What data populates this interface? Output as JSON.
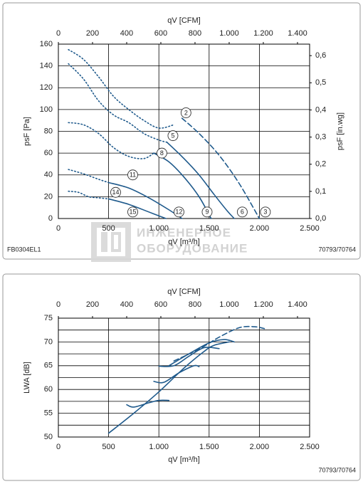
{
  "chart_data": [
    {
      "type": "line",
      "xlabel": "qV [m³/h]",
      "x2label": "qV [CFM]",
      "ylabel": "psF [Pa]",
      "y2label": "psF [in.wg]",
      "code_left": "FB0304EL1",
      "code_right": "70793/70764",
      "watermark": {
        "line1": "ИНЖЕНЕРНОЕ",
        "line2": "ОБОРУДОВАНИЕ"
      },
      "xlim": [
        0,
        2500
      ],
      "xticks": [
        0,
        500,
        {
          "value": 1000,
          "label": "1.000"
        },
        {
          "value": 1500,
          "label": "1.500"
        },
        {
          "value": 2000,
          "label": "2.000"
        },
        {
          "value": 2500,
          "label": "2.500"
        }
      ],
      "x2lim": [
        0,
        1471
      ],
      "x2ticks": [
        0,
        200,
        400,
        600,
        800,
        {
          "value": 1000,
          "label": "1.000"
        },
        {
          "value": 1200,
          "label": "1.200"
        },
        {
          "value": 1400,
          "label": "1.400"
        }
      ],
      "ylim": [
        0,
        160
      ],
      "yticks": [
        0,
        20,
        40,
        60,
        80,
        100,
        120,
        140,
        160
      ],
      "y2lim": [
        0,
        0.6424
      ],
      "y2ticks": [
        {
          "value": 0,
          "label": "0,0"
        },
        {
          "value": 0.1,
          "label": "0,1"
        },
        {
          "value": 0.2,
          "label": "0,2"
        },
        {
          "value": 0.3,
          "label": "0,3"
        },
        {
          "value": 0.4,
          "label": "0,4"
        },
        {
          "value": 0.5,
          "label": "0,5"
        },
        {
          "value": 0.6,
          "label": "0,6"
        }
      ],
      "grid": true,
      "color": "#1f5a8c",
      "series": [
        {
          "style": "dotted",
          "x": [
            100,
            250,
            400,
            550,
            700,
            850,
            1000,
            1150
          ],
          "values": [
            155,
            146,
            130,
            112,
            100,
            90,
            83,
            86
          ]
        },
        {
          "style": "dashed",
          "x": [
            1230,
            1400,
            1600,
            1800,
            2000
          ],
          "values": [
            92,
            78,
            58,
            32,
            0
          ]
        },
        {
          "style": "dotted",
          "x": [
            100,
            250,
            400,
            550,
            700,
            850,
            1000,
            1080
          ],
          "values": [
            142,
            128,
            108,
            95,
            88,
            78,
            72,
            70
          ]
        },
        {
          "style": "solid",
          "x": [
            1080,
            1250,
            1400,
            1550,
            1680,
            1750
          ],
          "values": [
            70,
            55,
            40,
            22,
            7,
            0
          ]
        },
        {
          "style": "dotted",
          "x": [
            100,
            250,
            400,
            550,
            700,
            850,
            950
          ],
          "values": [
            88,
            86,
            78,
            65,
            57,
            55,
            60
          ]
        },
        {
          "style": "solid",
          "x": [
            950,
            1100,
            1250,
            1400,
            1520
          ],
          "values": [
            60,
            52,
            38,
            20,
            0
          ]
        },
        {
          "style": "dotted",
          "x": [
            100,
            250,
            400,
            500
          ],
          "values": [
            45,
            41,
            36,
            33
          ]
        },
        {
          "style": "solid",
          "x": [
            500,
            700,
            900,
            1100,
            1230
          ],
          "values": [
            33,
            28,
            19,
            8,
            0
          ]
        },
        {
          "style": "dotted",
          "x": [
            100,
            200,
            300,
            400,
            500
          ],
          "values": [
            25,
            24,
            20,
            19,
            18
          ]
        },
        {
          "style": "solid",
          "x": [
            500,
            700,
            900,
            1070
          ],
          "values": [
            18,
            13,
            6,
            0
          ]
        }
      ],
      "annotations": [
        {
          "text": "2",
          "x": 1270,
          "y": 97
        },
        {
          "text": "3",
          "x": 2060,
          "y": 6
        },
        {
          "text": "5",
          "x": 1140,
          "y": 76
        },
        {
          "text": "6",
          "x": 1830,
          "y": 6
        },
        {
          "text": "8",
          "x": 1030,
          "y": 60
        },
        {
          "text": "9",
          "x": 1480,
          "y": 6
        },
        {
          "text": "11",
          "x": 740,
          "y": 40
        },
        {
          "text": "12",
          "x": 1200,
          "y": 6
        },
        {
          "text": "14",
          "x": 570,
          "y": 24
        },
        {
          "text": "15",
          "x": 740,
          "y": 6
        }
      ]
    },
    {
      "type": "line",
      "xlabel": "qV [m³/h]",
      "x2label": "qV [CFM]",
      "ylabel": "LWA [dB]",
      "code_right": "70793/70764",
      "xlim": [
        0,
        2500
      ],
      "xticks": [
        0,
        500,
        {
          "value": 1000,
          "label": "1.000"
        },
        {
          "value": 1500,
          "label": "1.500"
        },
        {
          "value": 2000,
          "label": "2.000"
        },
        {
          "value": 2500,
          "label": "2.500"
        }
      ],
      "x2lim": [
        0,
        1471
      ],
      "x2ticks": [
        0,
        200,
        400,
        600,
        800,
        {
          "value": 1000,
          "label": "1.000"
        },
        {
          "value": 1200,
          "label": "1.200"
        },
        {
          "value": 1400,
          "label": "1.400"
        }
      ],
      "ylim": [
        50,
        75
      ],
      "yticks": [
        50,
        55,
        60,
        65,
        70,
        75
      ],
      "yminor": [
        52.5,
        57.5,
        62.5,
        67.5,
        72.5
      ],
      "grid": true,
      "color": "#1f5a8c",
      "series": [
        {
          "style": "solid",
          "x": [
            500,
            750,
            1000,
            1250,
            1450,
            1550,
            1700
          ],
          "values": [
            50.8,
            55,
            59.5,
            64.5,
            68,
            69.3,
            70
          ]
        },
        {
          "style": "solid",
          "x": [
            680,
            750,
            900,
            1000,
            1100
          ],
          "values": [
            56.8,
            56.3,
            57.2,
            57.7,
            57.7
          ]
        },
        {
          "style": "solid",
          "x": [
            950,
            1050,
            1200,
            1350,
            1400
          ],
          "values": [
            61.7,
            61.5,
            63.5,
            65,
            64.8
          ]
        },
        {
          "style": "solid",
          "x": [
            1000,
            1150,
            1300,
            1450,
            1600
          ],
          "values": [
            64.9,
            65,
            67,
            68.8,
            68.6
          ]
        },
        {
          "style": "solid",
          "x": [
            1100,
            1300,
            1500,
            1650,
            1750
          ],
          "values": [
            65,
            67.5,
            69.8,
            70.5,
            70
          ]
        },
        {
          "style": "dashed",
          "x": [
            1150,
            1400,
            1600,
            1800,
            1950,
            2050
          ],
          "values": [
            66,
            68.5,
            71,
            73,
            73.2,
            72.8
          ]
        }
      ]
    }
  ]
}
